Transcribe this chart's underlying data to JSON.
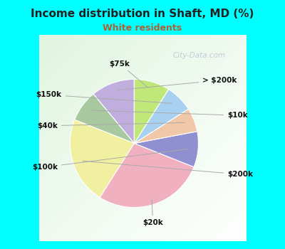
{
  "title": "Income distribution in Shaft, MD (%)",
  "subtitle": "White residents",
  "title_color": "#222222",
  "subtitle_color": "#b06030",
  "background_outer": "#00ffff",
  "background_inner_color": "#d8f0e0",
  "labels": [
    "> $200k",
    "$10k",
    "$200k",
    "$20k",
    "$100k",
    "$40k",
    "$150k",
    "$75k"
  ],
  "values": [
    11,
    8,
    22,
    28,
    9,
    6,
    7,
    9
  ],
  "colors": [
    "#c0aede",
    "#a8c8a0",
    "#f0f0a0",
    "#f0b0c0",
    "#9090d0",
    "#f0c8a8",
    "#a8d0f0",
    "#c0e878"
  ],
  "startangle": 90,
  "watermark": "City-Data.com"
}
